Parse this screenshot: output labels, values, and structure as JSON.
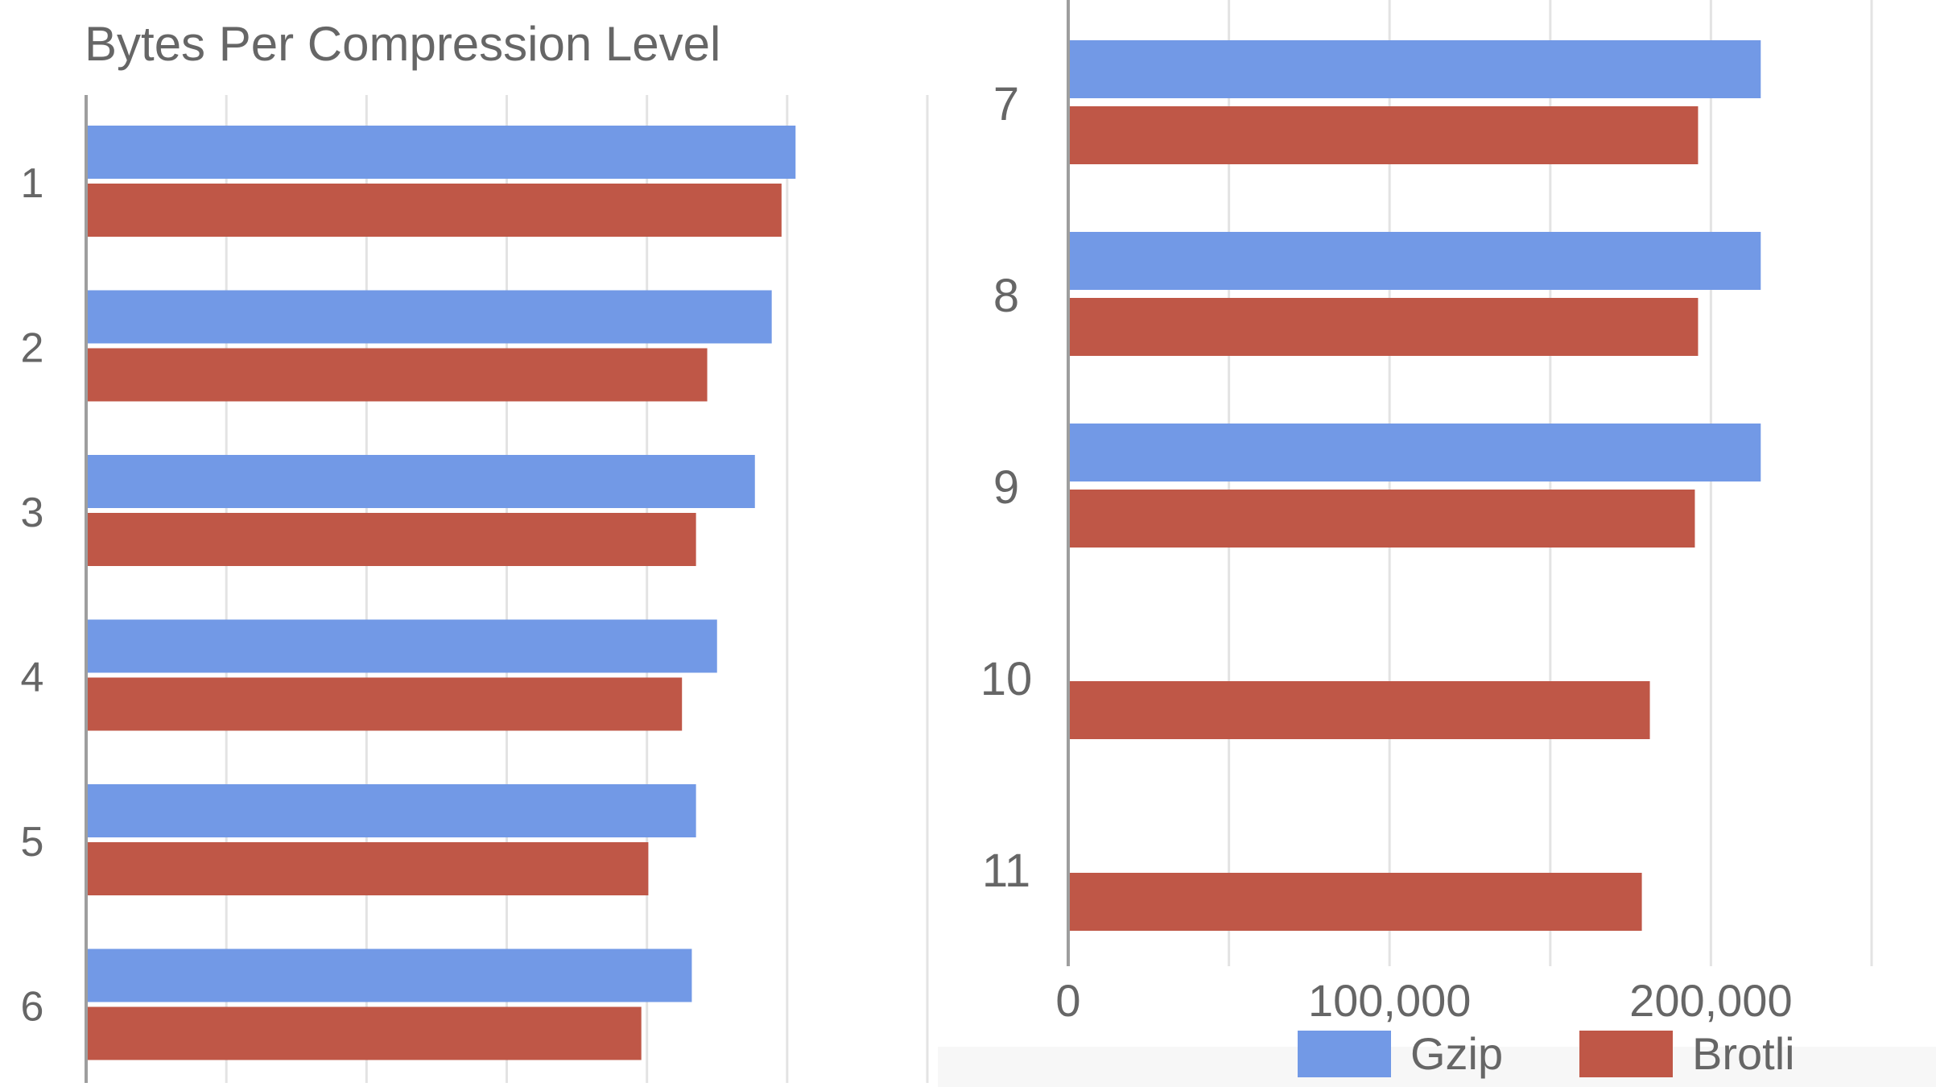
{
  "chart_data": [
    {
      "type": "bar",
      "orientation": "horizontal",
      "title": "Bytes Per Compression Level",
      "categories": [
        "1",
        "2",
        "3",
        "4",
        "5",
        "6"
      ],
      "series": [
        {
          "name": "Gzip",
          "values": [
            253000,
            244500,
            238500,
            225000,
            217500,
            216000
          ]
        },
        {
          "name": "Brotli",
          "values": [
            248000,
            221500,
            217500,
            212500,
            200500,
            198000
          ]
        }
      ],
      "xlim": [
        0,
        300000
      ],
      "grid": true,
      "colors": {
        "gzip": "#7299e6",
        "brotli": "#bf5747",
        "axis": "#9e9e9e",
        "grid": "#e3e3e3",
        "text": "#666666"
      }
    },
    {
      "type": "bar",
      "orientation": "horizontal",
      "title": "",
      "categories": [
        "7",
        "8",
        "9",
        "10",
        "11"
      ],
      "series": [
        {
          "name": "Gzip",
          "values": [
            215500,
            215500,
            215500,
            null,
            null
          ]
        },
        {
          "name": "Brotli",
          "values": [
            196000,
            196000,
            195000,
            181000,
            178500
          ]
        }
      ],
      "xlim": [
        0,
        250000
      ],
      "xticks": [
        "0",
        "100,000",
        "200,000"
      ],
      "xtick_values": [
        0,
        100000,
        200000
      ],
      "grid": true,
      "legend": {
        "position": "bottom-right",
        "entries": [
          "Gzip",
          "Brotli"
        ]
      },
      "colors": {
        "gzip": "#7299e6",
        "brotli": "#bf5747",
        "axis": "#9e9e9e",
        "grid": "#e3e3e3",
        "text": "#666666"
      }
    }
  ]
}
